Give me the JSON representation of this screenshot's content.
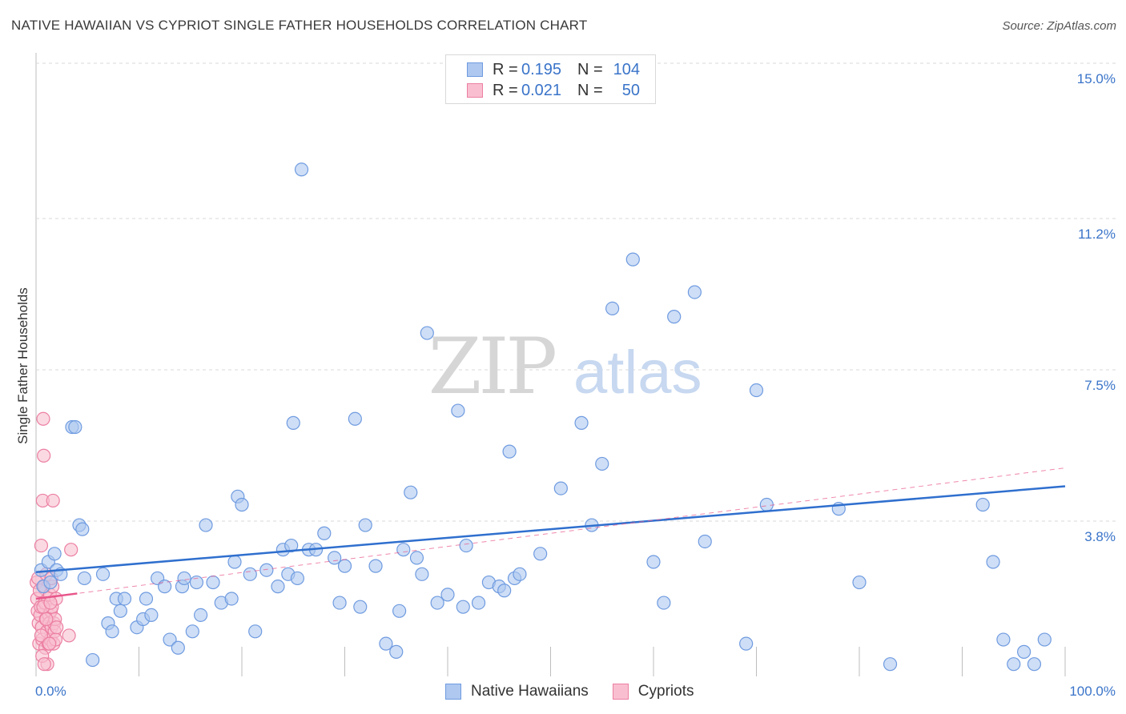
{
  "header": {
    "title": "NATIVE HAWAIIAN VS CYPRIOT SINGLE FATHER HOUSEHOLDS CORRELATION CHART",
    "source": "Source: ZipAtlas.com"
  },
  "legend_top": {
    "rows": [
      {
        "r_label": "R =",
        "r_value": "0.195",
        "n_label": "N =",
        "n_value": "104"
      },
      {
        "r_label": "R =",
        "r_value": "0.021",
        "n_label": "N =",
        "n_value": "50"
      }
    ]
  },
  "legend_bottom": {
    "items": [
      "Native Hawaiians",
      "Cypriots"
    ]
  },
  "colors": {
    "blue_fill": "#aec8f0",
    "blue_stroke": "#6f9be0",
    "blue_line": "#2f6fce",
    "pink_fill": "#f9bfd0",
    "pink_stroke": "#ec7fa2",
    "pink_line": "#e8558a",
    "tick_label": "#3a74c9"
  },
  "watermark": {
    "zip": "ZIP",
    "atlas": "atlas"
  },
  "chart_data": {
    "type": "scatter",
    "title": "NATIVE HAWAIIAN VS CYPRIOT SINGLE FATHER HOUSEHOLDS CORRELATION CHART",
    "xlabel": "",
    "ylabel": "Single Father Households",
    "xlim": [
      0,
      100
    ],
    "ylim": [
      0,
      15
    ],
    "x_tick_labels": [
      "0.0%",
      "100.0%"
    ],
    "y_ticks": [
      3.8,
      7.5,
      11.2,
      15.0
    ],
    "y_tick_labels": [
      "3.8%",
      "7.5%",
      "11.2%",
      "15.0%"
    ],
    "grid": true,
    "legend_position": "top-center",
    "series": [
      {
        "name": "Native Hawaiians",
        "R": 0.195,
        "N": 104,
        "trend": {
          "x": [
            0,
            100
          ],
          "y": [
            2.55,
            4.65
          ]
        },
        "x": [
          0.5,
          0.7,
          1.2,
          1.4,
          1.8,
          2.0,
          2.4,
          3.5,
          3.8,
          4.2,
          4.5,
          4.7,
          5.5,
          6.5,
          7.0,
          7.4,
          7.8,
          8.2,
          8.6,
          9.8,
          10.4,
          10.7,
          11.2,
          11.8,
          12.5,
          13.0,
          13.8,
          14.2,
          14.4,
          15.2,
          15.6,
          16.0,
          16.5,
          17.2,
          18.0,
          19.0,
          19.3,
          19.6,
          20.0,
          20.8,
          21.3,
          22.4,
          23.5,
          24.0,
          24.5,
          24.8,
          25.0,
          25.4,
          25.8,
          26.5,
          27.2,
          28.0,
          29.0,
          29.5,
          30.0,
          31.0,
          31.5,
          32.0,
          33.0,
          34.0,
          35.0,
          35.3,
          35.7,
          36.4,
          37.0,
          37.5,
          38.0,
          39.0,
          40.0,
          41.0,
          41.5,
          41.8,
          43.0,
          44.0,
          45.0,
          45.5,
          46.0,
          46.5,
          47.0,
          49.0,
          51.0,
          53.0,
          54.0,
          55.0,
          56.0,
          58.0,
          60.0,
          61.0,
          62.0,
          64.0,
          65.0,
          69.0,
          70.0,
          71.0,
          78.0,
          80.0,
          83.0,
          92.0,
          93.0,
          94.0,
          95.0,
          96.0,
          97.0,
          98.0
        ],
        "y": [
          2.6,
          2.2,
          2.8,
          2.3,
          3.0,
          2.6,
          2.5,
          6.1,
          6.1,
          3.7,
          3.6,
          2.4,
          0.4,
          2.5,
          1.3,
          1.1,
          1.9,
          1.6,
          1.9,
          1.2,
          1.4,
          1.9,
          1.5,
          2.4,
          2.2,
          0.9,
          0.7,
          2.2,
          2.4,
          1.1,
          2.3,
          1.5,
          3.7,
          2.3,
          1.8,
          1.9,
          2.8,
          4.4,
          4.2,
          2.5,
          1.1,
          2.6,
          2.2,
          3.1,
          2.5,
          3.2,
          6.2,
          2.4,
          12.4,
          3.1,
          3.1,
          3.5,
          2.9,
          1.8,
          2.7,
          6.3,
          1.7,
          3.7,
          2.7,
          0.8,
          0.6,
          1.6,
          3.1,
          4.5,
          2.9,
          2.5,
          8.4,
          1.8,
          2.0,
          6.5,
          1.7,
          3.2,
          1.8,
          2.3,
          2.2,
          2.1,
          5.5,
          2.4,
          2.5,
          3.0,
          4.6,
          6.2,
          3.7,
          5.2,
          9.0,
          10.2,
          2.8,
          1.8,
          8.8,
          9.4,
          3.3,
          0.8,
          7.0,
          4.2,
          4.1,
          2.3,
          0.3,
          4.2,
          2.8,
          0.9,
          0.3,
          0.6,
          0.3,
          0.9
        ]
      },
      {
        "name": "Cypriots",
        "R": 0.021,
        "N": 50,
        "trend": {
          "x": [
            0,
            100
          ],
          "y": [
            1.9,
            5.1
          ]
        },
        "x": [
          0.05,
          0.1,
          0.15,
          0.2,
          0.25,
          0.3,
          0.35,
          0.4,
          0.45,
          0.5,
          0.55,
          0.6,
          0.65,
          0.7,
          0.75,
          0.8,
          0.85,
          0.9,
          0.95,
          1.0,
          1.05,
          1.1,
          1.15,
          1.2,
          1.25,
          1.3,
          1.35,
          1.4,
          1.45,
          1.5,
          1.55,
          1.6,
          1.65,
          1.7,
          1.75,
          1.8,
          1.85,
          1.9,
          1.95,
          2.0,
          0.6,
          0.8,
          0.5,
          0.7,
          1.0,
          1.4,
          1.5,
          1.3,
          3.2,
          3.4
        ],
        "y": [
          2.3,
          1.9,
          1.6,
          2.4,
          1.3,
          0.8,
          2.1,
          1.5,
          1.7,
          3.2,
          1.2,
          0.9,
          4.3,
          6.3,
          5.4,
          2.2,
          1.8,
          0.7,
          1.4,
          2.5,
          1.1,
          0.3,
          1.9,
          0.8,
          1.5,
          1.3,
          2.0,
          0.9,
          1.6,
          1.2,
          1.7,
          2.2,
          4.3,
          0.8,
          1.3,
          1.1,
          1.4,
          0.9,
          1.9,
          1.2,
          0.5,
          0.3,
          1.0,
          1.7,
          1.4,
          1.8,
          2.4,
          0.8,
          1.0,
          3.1
        ]
      }
    ]
  }
}
